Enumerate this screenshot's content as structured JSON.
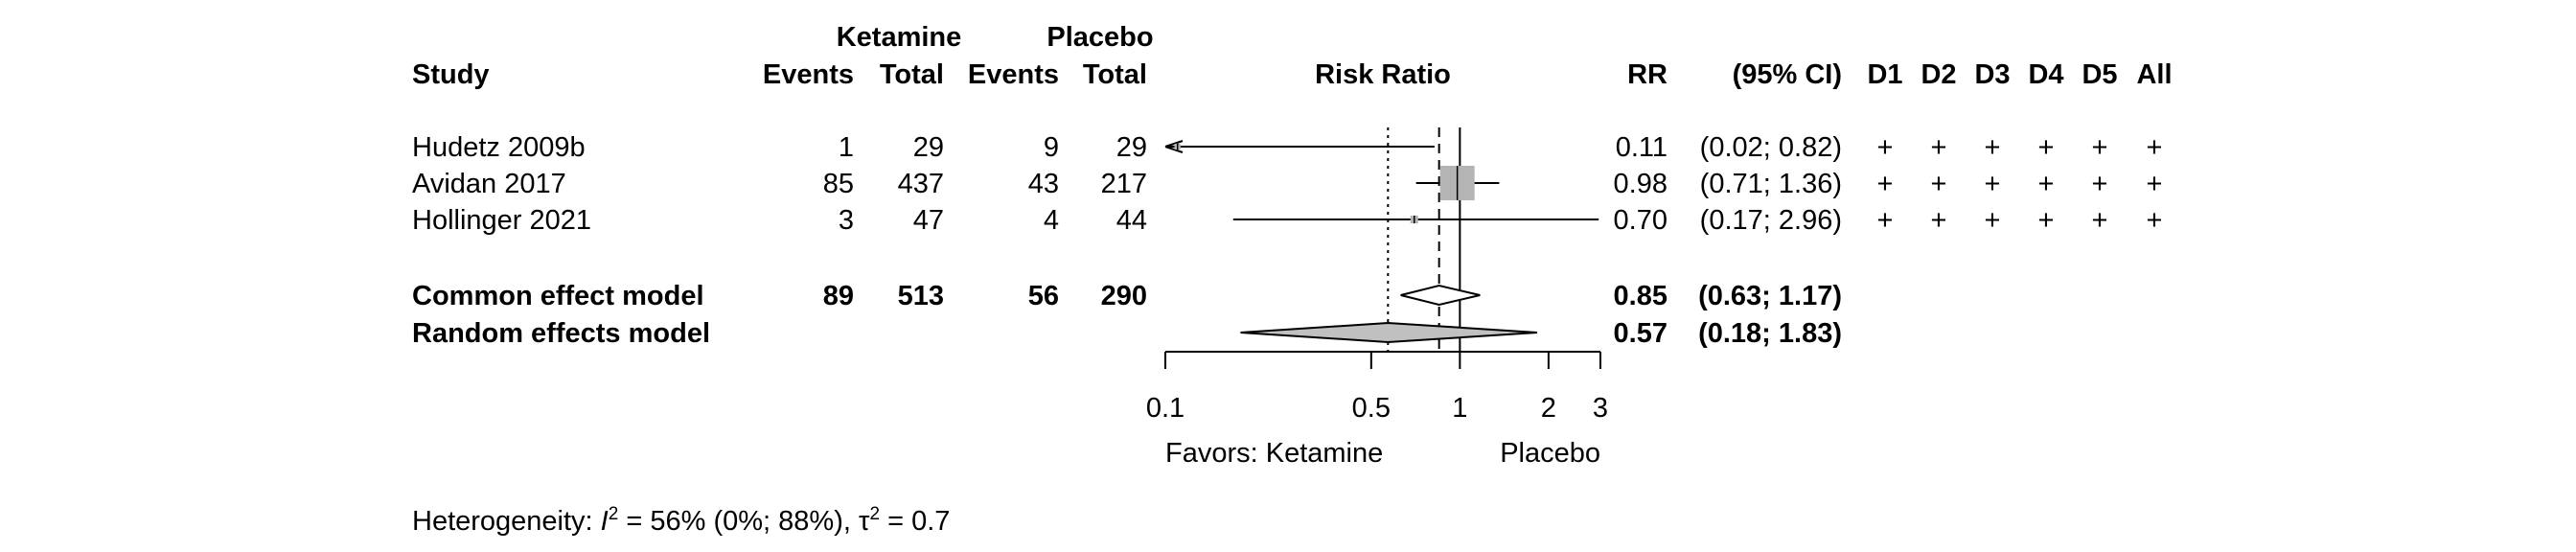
{
  "chart_data": {
    "type": "forest",
    "x_scale": "log",
    "xlim": [
      0.1,
      3
    ],
    "x_ticks": [
      "0.1",
      "0.5",
      "1",
      "2",
      "3"
    ],
    "x_tick_values": [
      0.1,
      0.5,
      1,
      2,
      3
    ],
    "x_label_left": "Favors: Ketamine",
    "x_label_right": "Placebo",
    "null_value": 1,
    "common_line": 0.85,
    "random_line": 0.57,
    "headers": {
      "group1": "Ketamine",
      "group2": "Placebo",
      "study": "Study",
      "events": "Events",
      "total": "Total",
      "risk_ratio": "Risk Ratio",
      "rr": "RR",
      "ci": "(95% CI)",
      "bias_domains": [
        "D1",
        "D2",
        "D3",
        "D4",
        "D5",
        "All"
      ]
    },
    "studies": [
      {
        "study": "Hudetz 2009b",
        "events1": "1",
        "total1": "29",
        "events2": "9",
        "total2": "29",
        "rr": 0.11,
        "lower": 0.02,
        "upper": 0.82,
        "rr_text": "0.11",
        "ci_text": "(0.02; 0.82)",
        "weight": 0.03,
        "bias": [
          "+",
          "+",
          "+",
          "+",
          "+",
          "+"
        ]
      },
      {
        "study": "Avidan 2017",
        "events1": "85",
        "total1": "437",
        "events2": "43",
        "total2": "217",
        "rr": 0.98,
        "lower": 0.71,
        "upper": 1.36,
        "rr_text": "0.98",
        "ci_text": "(0.71; 1.36)",
        "weight": 1.0,
        "bias": [
          "+",
          "+",
          "+",
          "+",
          "+",
          "+"
        ]
      },
      {
        "study": "Hollinger 2021",
        "events1": "3",
        "total1": "47",
        "events2": "4",
        "total2": "44",
        "rr": 0.7,
        "lower": 0.17,
        "upper": 2.96,
        "rr_text": "0.70",
        "ci_text": "(0.17; 2.96)",
        "weight": 0.05,
        "bias": [
          "+",
          "+",
          "+",
          "+",
          "+",
          "+"
        ]
      }
    ],
    "summaries": [
      {
        "label": "Common effect model",
        "events1": "89",
        "total1": "513",
        "events2": "56",
        "total2": "290",
        "rr": 0.85,
        "lower": 0.63,
        "upper": 1.17,
        "rr_text": "0.85",
        "ci_text": "(0.63; 1.17)",
        "fill": "#ffffff"
      },
      {
        "label": "Random effects model",
        "rr": 0.57,
        "lower": 0.18,
        "upper": 1.83,
        "rr_text": "0.57",
        "ci_text": "(0.18; 1.83)",
        "fill": "#c0c0c0"
      }
    ],
    "heterogeneity": {
      "prefix": "Heterogeneity: ",
      "i2_symbol": "I",
      "i2_text": " = 56% (0%; 88%), ",
      "tau2_symbol": "τ",
      "tau2_text": " = 0.7",
      "superscript": "2"
    },
    "colors": {
      "square": "#b4b4b4",
      "diamond_random": "#c0c0c0",
      "line": "#000000"
    }
  }
}
